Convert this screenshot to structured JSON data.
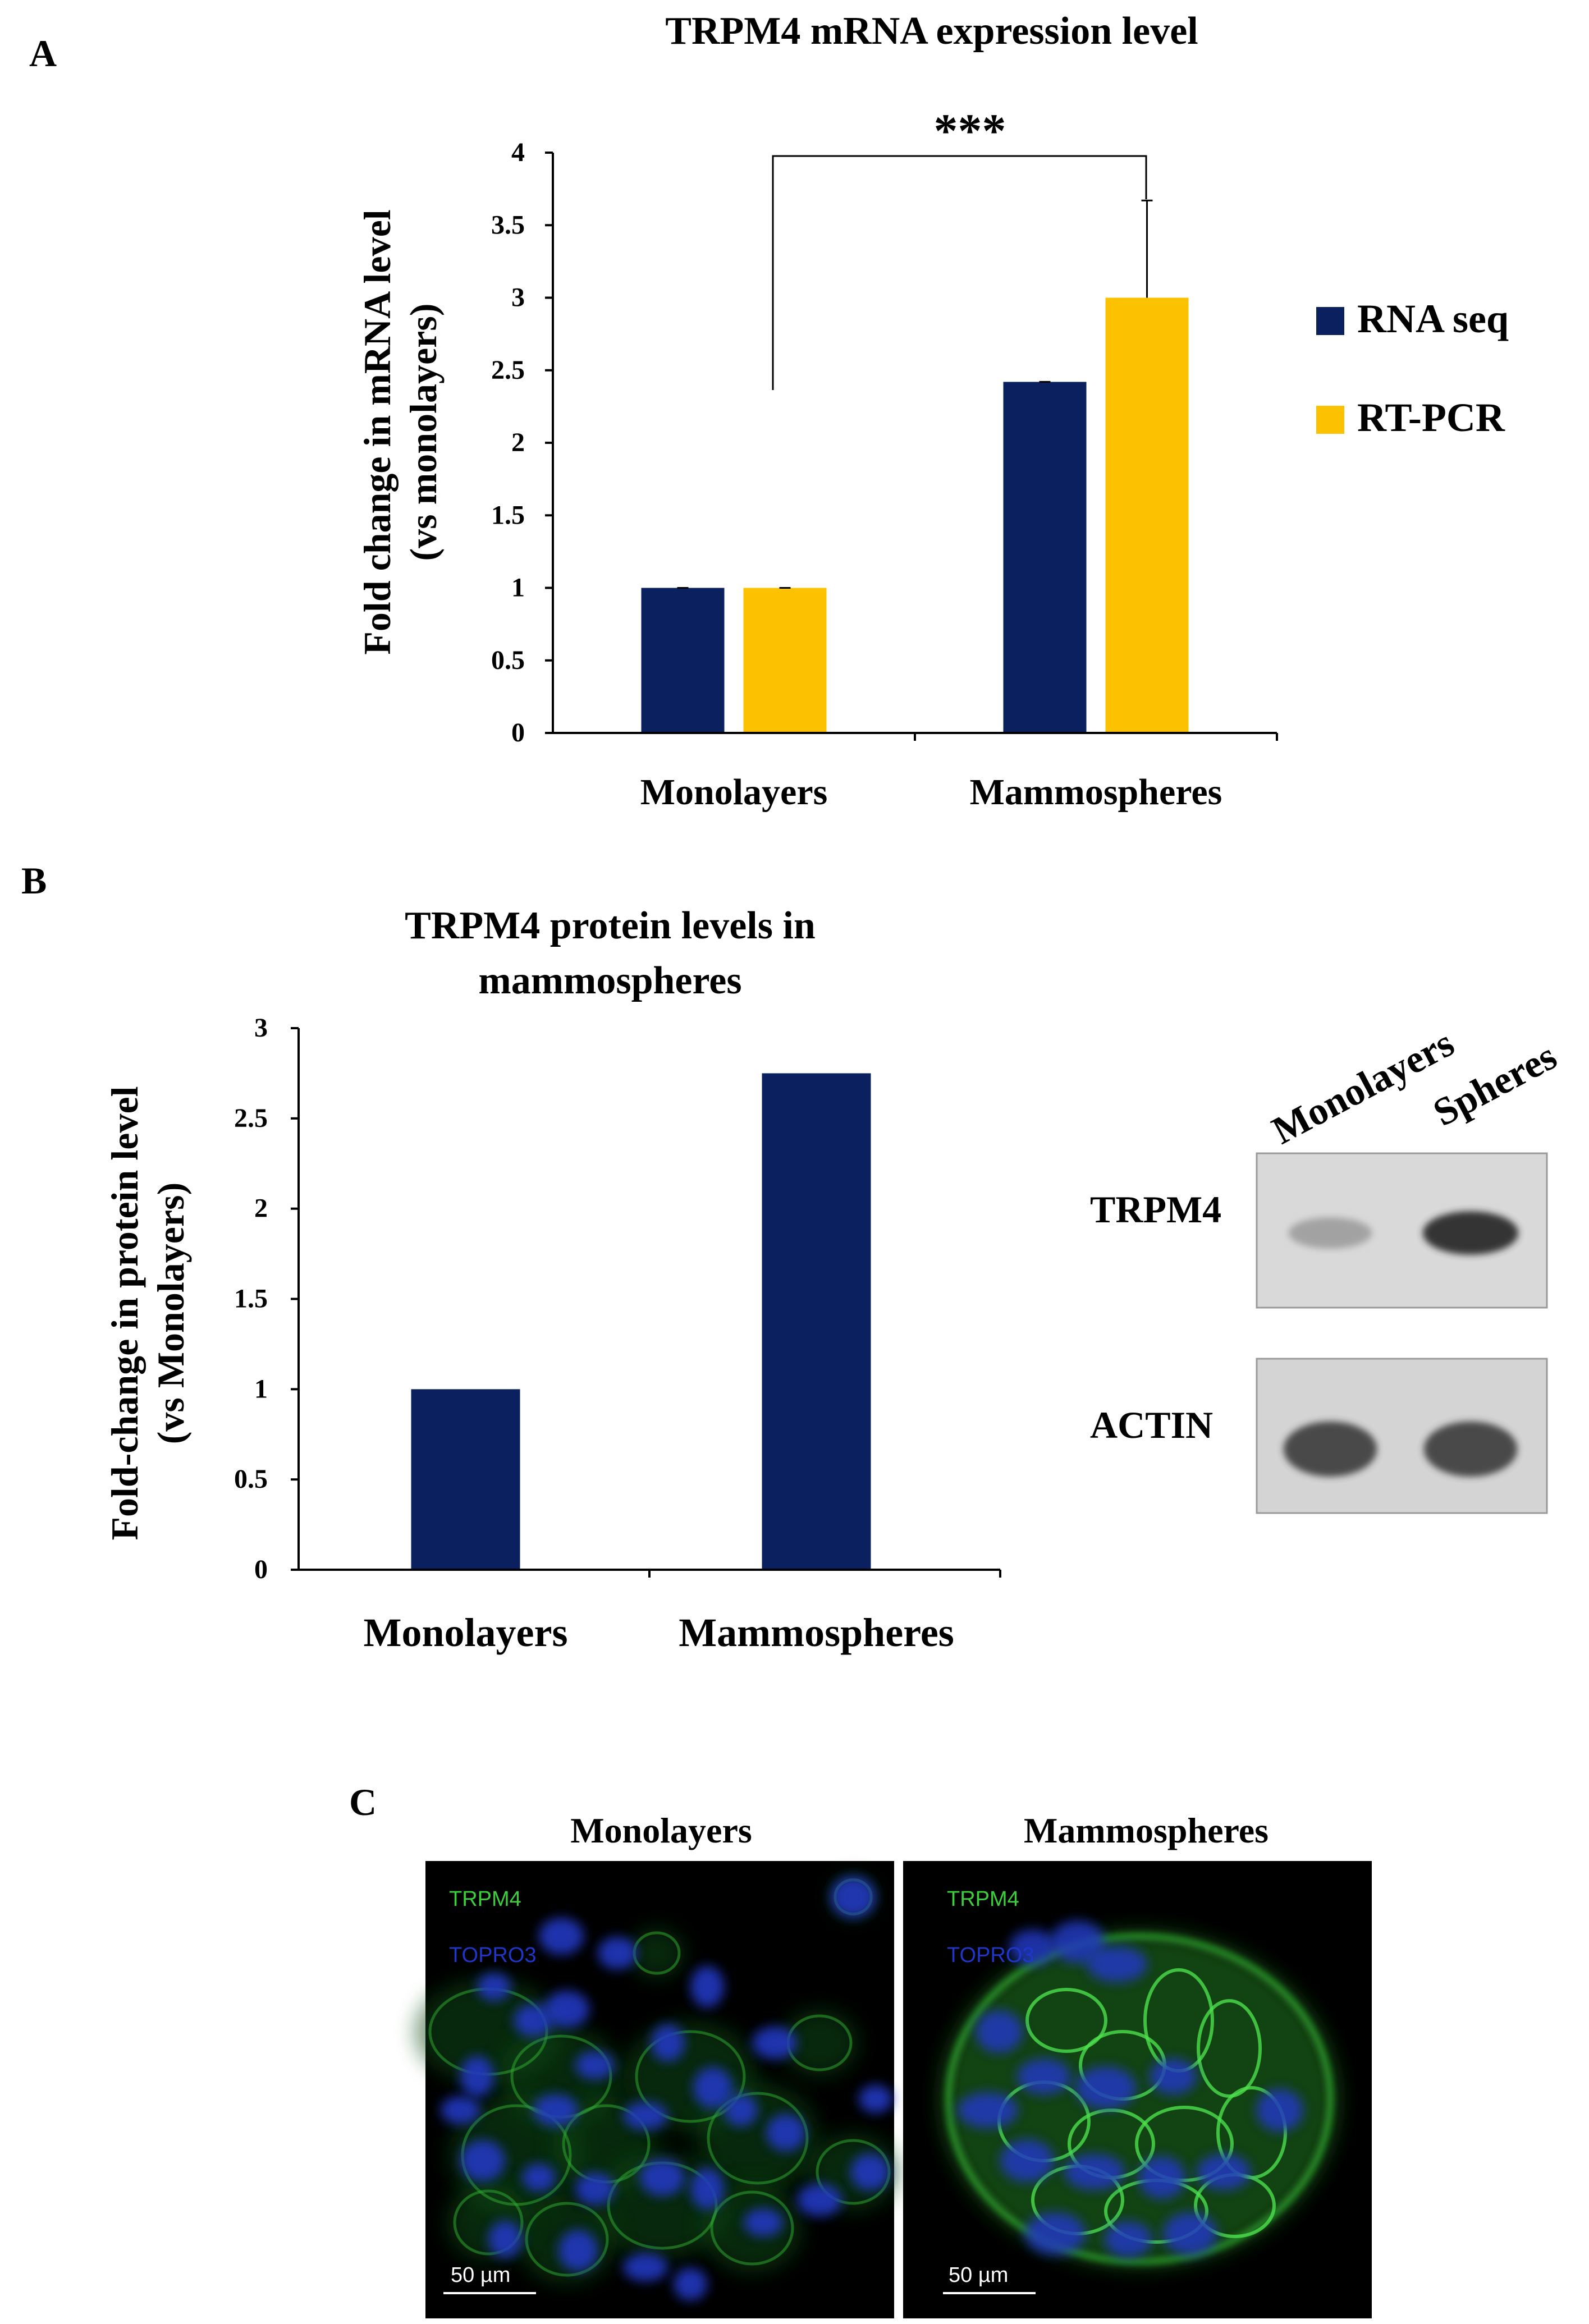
{
  "panels": {
    "a": {
      "letter": "A"
    },
    "b": {
      "letter": "B"
    },
    "c": {
      "letter": "C"
    }
  },
  "colors": {
    "navy": "#0b215f",
    "gold": "#fcc100",
    "axis": "#000000",
    "green_stain": "#3ccf3c",
    "blue_stain": "#1f36c8",
    "blot_background": "#d9d9d9"
  },
  "chart_data": [
    {
      "type": "bar",
      "title": "TRPM4 mRNA expression level",
      "ylabel_line1": "Fold change in mRNA level",
      "ylabel_line2": "(vs monolayers)",
      "xlabel": "",
      "categories": [
        "Monolayers",
        "Mammospheres"
      ],
      "series": [
        {
          "name": "RNA seq",
          "values": [
            1.0,
            2.42
          ],
          "error": [
            0.0,
            0.0
          ],
          "color": "#0b215f"
        },
        {
          "name": "RT-PCR",
          "values": [
            1.0,
            3.0
          ],
          "error": [
            0.0,
            0.67
          ],
          "color": "#fcc100"
        }
      ],
      "ylim": [
        0,
        4
      ],
      "yticks": [
        "0",
        "0.5",
        "1",
        "1.5",
        "2",
        "2.5",
        "3",
        "3.5",
        "4"
      ],
      "significance": "***",
      "legend_placement": "right",
      "grid": false
    },
    {
      "type": "bar",
      "title_line1": "TRPM4 protein levels in",
      "title_line2": "mammospheres",
      "ylabel_line1": "Fold-change in protein level",
      "ylabel_line2": "(vs Monolayers)",
      "xlabel": "",
      "categories": [
        "Monolayers",
        "Mammospheres"
      ],
      "series": [
        {
          "values": [
            1.0,
            2.75
          ],
          "color": "#0b215f"
        }
      ],
      "ylim": [
        0,
        3
      ],
      "yticks": [
        "0",
        "0.5",
        "1",
        "1.5",
        "2",
        "2.5",
        "3"
      ],
      "grid": false
    }
  ],
  "western_blot": {
    "lanes": [
      "Monolayers",
      "Spheres"
    ],
    "bands": [
      {
        "label": "TRPM4",
        "intensity": [
          0.35,
          0.95
        ]
      },
      {
        "label": "ACTIN",
        "intensity": [
          0.85,
          0.85
        ]
      }
    ]
  },
  "microscopy": {
    "images": [
      {
        "title": "Monolayers",
        "stain1": "TRPM4",
        "stain2": "TOPRO3",
        "scale_bar": "50 µm"
      },
      {
        "title": "Mammospheres",
        "stain1": "TRPM4",
        "stain2": "TOPRO3",
        "scale_bar": "50 µm"
      }
    ]
  }
}
